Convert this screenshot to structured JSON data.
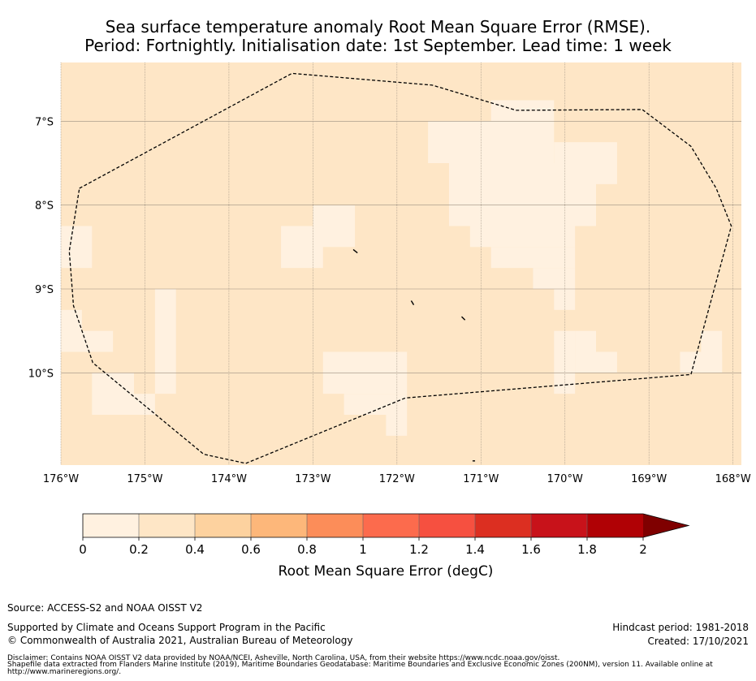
{
  "title": {
    "line1": "Sea surface temperature anomaly Root Mean Square Error (RMSE).",
    "line2": "Period: Fortnightly. Initialisation date: 1st September. Lead time: 1 week"
  },
  "map": {
    "lon_range": [
      -176,
      -167.9
    ],
    "lat_range": [
      -11.1,
      -6.3
    ],
    "lon_ticks": [
      {
        "value": -176,
        "label": "176°W"
      },
      {
        "value": -175,
        "label": "175°W"
      },
      {
        "value": -174,
        "label": "174°W"
      },
      {
        "value": -173,
        "label": "173°W"
      },
      {
        "value": -172,
        "label": "172°W"
      },
      {
        "value": -171,
        "label": "171°W"
      },
      {
        "value": -170,
        "label": "170°W"
      },
      {
        "value": -169,
        "label": "169°W"
      },
      {
        "value": -168,
        "label": "168°W"
      }
    ],
    "lat_ticks": [
      {
        "value": -7,
        "label": "7°S"
      },
      {
        "value": -8,
        "label": "8°S"
      },
      {
        "value": -9,
        "label": "9°S"
      },
      {
        "value": -10,
        "label": "10°S"
      }
    ],
    "background_color": "#fee6c6",
    "low_error_color": "#fff1e0",
    "low_error_cells": [
      {
        "lon": -176.0,
        "lat": -8.75,
        "w": 0.37,
        "h": 0.5
      },
      {
        "lon": -176.0,
        "lat": -9.75,
        "w": 0.62,
        "h": 0.25
      },
      {
        "lon": -176.0,
        "lat": -9.75,
        "w": 0.25,
        "h": 0.5
      },
      {
        "lon": -174.88,
        "lat": -10.25,
        "w": 0.25,
        "h": 1.25
      },
      {
        "lon": -175.63,
        "lat": -10.5,
        "w": 0.5,
        "h": 0.5
      },
      {
        "lon": -175.13,
        "lat": -10.5,
        "w": 0.25,
        "h": 0.25
      },
      {
        "lon": -173.0,
        "lat": -8.5,
        "w": 0.5,
        "h": 0.5
      },
      {
        "lon": -173.38,
        "lat": -8.75,
        "w": 0.5,
        "h": 0.5
      },
      {
        "lon": -172.88,
        "lat": -10.25,
        "w": 1.0,
        "h": 0.5
      },
      {
        "lon": -172.38,
        "lat": -10.0,
        "w": 0.25,
        "h": 0.25
      },
      {
        "lon": -172.63,
        "lat": -10.5,
        "w": 0.75,
        "h": 0.25
      },
      {
        "lon": -172.13,
        "lat": -10.75,
        "w": 0.25,
        "h": 0.25
      },
      {
        "lon": -171.63,
        "lat": -7.5,
        "w": 1.5,
        "h": 0.5
      },
      {
        "lon": -171.38,
        "lat": -8.25,
        "w": 1.75,
        "h": 0.75
      },
      {
        "lon": -171.13,
        "lat": -8.5,
        "w": 1.25,
        "h": 0.25
      },
      {
        "lon": -170.88,
        "lat": -8.75,
        "w": 1.0,
        "h": 0.25
      },
      {
        "lon": -170.38,
        "lat": -9.0,
        "w": 0.5,
        "h": 0.25
      },
      {
        "lon": -170.13,
        "lat": -9.25,
        "w": 0.25,
        "h": 0.25
      },
      {
        "lon": -170.88,
        "lat": -7.0,
        "w": 0.75,
        "h": 0.25
      },
      {
        "lon": -170.13,
        "lat": -7.75,
        "w": 0.75,
        "h": 0.5
      },
      {
        "lon": -170.13,
        "lat": -10.25,
        "w": 0.25,
        "h": 0.75
      },
      {
        "lon": -169.88,
        "lat": -10.0,
        "w": 0.25,
        "h": 0.5
      },
      {
        "lon": -169.63,
        "lat": -10.0,
        "w": 0.25,
        "h": 0.25
      },
      {
        "lon": -168.63,
        "lat": -10.0,
        "w": 0.5,
        "h": 0.25
      },
      {
        "lon": -168.38,
        "lat": -10.0,
        "w": 0.25,
        "h": 0.5
      }
    ],
    "eez_boundary": [
      [
        -175.78,
        -7.8
      ],
      [
        -173.25,
        -6.43
      ],
      [
        -171.58,
        -6.57
      ],
      [
        -170.58,
        -6.87
      ],
      [
        -169.08,
        -6.86
      ],
      [
        -168.5,
        -7.3
      ],
      [
        -168.2,
        -7.8
      ],
      [
        -168.02,
        -8.25
      ],
      [
        -168.5,
        -10.02
      ],
      [
        -171.9,
        -10.3
      ],
      [
        -173.8,
        -11.08
      ],
      [
        -174.3,
        -10.97
      ],
      [
        -175.62,
        -9.88
      ],
      [
        -175.85,
        -9.2
      ],
      [
        -175.9,
        -8.55
      ],
      [
        -175.78,
        -7.8
      ]
    ],
    "islands": [
      [
        [
          -172.52,
          -8.53
        ],
        [
          -172.47,
          -8.57
        ]
      ],
      [
        [
          -171.83,
          -9.14
        ],
        [
          -171.8,
          -9.19
        ]
      ],
      [
        [
          -171.23,
          -9.33
        ],
        [
          -171.19,
          -9.37
        ]
      ],
      [
        [
          -171.1,
          -11.05
        ],
        [
          -171.07,
          -11.05
        ]
      ]
    ]
  },
  "colorbar": {
    "label": "Root Mean Square Error (degC)",
    "colors": [
      "#fff1e0",
      "#fee6c6",
      "#fdd29f",
      "#fdb77a",
      "#fc8d59",
      "#fc6b4d",
      "#f65040",
      "#dc2f21",
      "#c8121a",
      "#b00105"
    ],
    "extend_color": "#7f0000",
    "tick_labels": [
      "0",
      "0.2",
      "0.4",
      "0.6",
      "0.8",
      "1",
      "1.2",
      "1.4",
      "1.6",
      "1.8",
      "2"
    ]
  },
  "footer": {
    "source": "Source: ACCESS-S2 and NOAA OISST V2",
    "supported_by": "Supported by Climate and Oceans Support Program in the Pacific",
    "copyright": "© Commonwealth of Australia 2021, Australian Bureau of Meteorology",
    "hindcast_period": "Hindcast period: 1981-2018",
    "created": "Created: 17/10/2021",
    "disclaimer1": "Disclaimer: Contains NOAA OISST V2 data provided by NOAA/NCEI, Asheville, North Carolina, USA, from their website https://www.ncdc.noaa.gov/oisst.",
    "disclaimer2": "Shapefile data extracted from Flanders Marine Institute (2019), Maritime Boundaries Geodatabase: Maritime Boundaries and Exclusive Economic Zones (200NM), version 11. Available online at",
    "disclaimer3": "http://www.marineregions.org/."
  }
}
